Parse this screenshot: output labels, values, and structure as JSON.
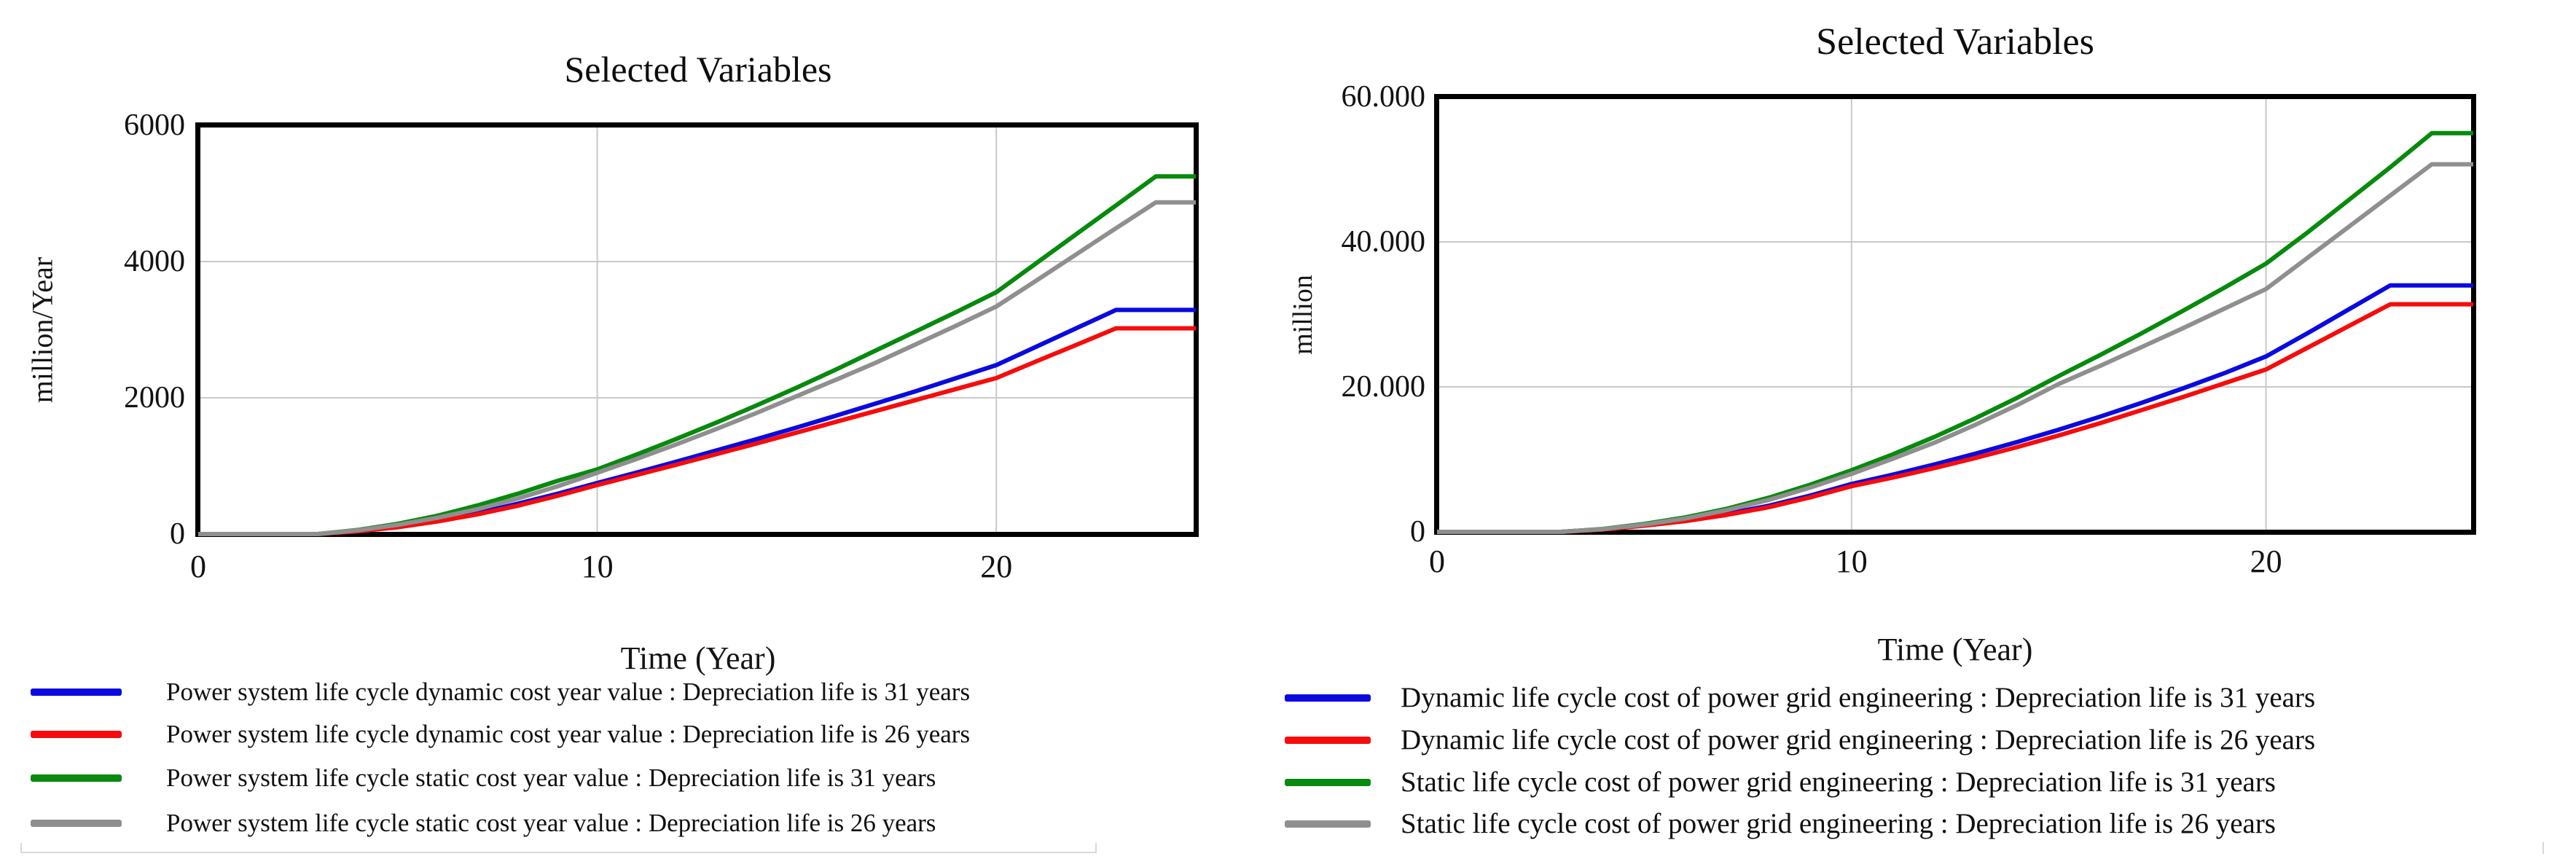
{
  "figure": {
    "background": "#ffffff",
    "frame_color": "#000000",
    "gridline_color": "#c9c9c9"
  },
  "chart_data": [
    {
      "type": "line",
      "title": "Selected Variables",
      "xlabel": "Time (Year)",
      "ylabel": "million/Year",
      "xlim": [
        0,
        25
      ],
      "ylim": [
        0,
        6000
      ],
      "grid": true,
      "legend_position": "bottom-left",
      "x_ticks": [
        {
          "value": 0,
          "label": "0"
        },
        {
          "value": 10,
          "label": "10"
        },
        {
          "value": 20,
          "label": "20"
        }
      ],
      "y_ticks": [
        {
          "value": 0,
          "label": "0"
        },
        {
          "value": 2000,
          "label": "2000"
        },
        {
          "value": 4000,
          "label": "4000"
        },
        {
          "value": 6000,
          "label": "6000"
        }
      ],
      "x": [
        0,
        1,
        2,
        3,
        4,
        5,
        6,
        7,
        8,
        9,
        10,
        11,
        12,
        13,
        14,
        15,
        16,
        17,
        18,
        19,
        20,
        21,
        22,
        23,
        24,
        25
      ],
      "series": [
        {
          "name": "Power system life cycle dynamic cost year value : Depreciation life is 31 years",
          "color": "#0a0ae0",
          "values": [
            0,
            0,
            0,
            0,
            45,
            110,
            200,
            310,
            445,
            590,
            750,
            905,
            1065,
            1230,
            1395,
            1565,
            1740,
            1920,
            2100,
            2290,
            2480,
            2750,
            3020,
            3290,
            3290,
            3290
          ]
        },
        {
          "name": "Power system life cycle dynamic cost year value : Depreciation life is 26 years",
          "color": "#f60c0c",
          "values": [
            0,
            0,
            0,
            0,
            40,
            100,
            185,
            290,
            415,
            560,
            720,
            870,
            1020,
            1175,
            1330,
            1490,
            1650,
            1810,
            1970,
            2130,
            2290,
            2535,
            2775,
            3020,
            3020,
            3020
          ]
        },
        {
          "name": "Power system life cycle static cost year value : Depreciation life is 31 years",
          "color": "#078a0d",
          "values": [
            0,
            0,
            0,
            0,
            60,
            150,
            270,
            420,
            590,
            780,
            950,
            1170,
            1400,
            1640,
            1890,
            2150,
            2420,
            2700,
            2980,
            3260,
            3550,
            3975,
            4400,
            4825,
            5250,
            5250
          ]
        },
        {
          "name": "Power system life cycle static cost year value : Depreciation life is 26 years",
          "color": "#8f8f8f",
          "values": [
            0,
            0,
            0,
            0,
            55,
            135,
            240,
            365,
            520,
            700,
            900,
            1105,
            1320,
            1545,
            1780,
            2025,
            2270,
            2520,
            2790,
            3060,
            3340,
            3720,
            4105,
            4490,
            4870,
            4870
          ]
        }
      ]
    },
    {
      "type": "line",
      "title": "Selected Variables",
      "xlabel": "Time (Year)",
      "ylabel": "million",
      "xlim": [
        0,
        25
      ],
      "ylim": [
        0,
        60000
      ],
      "grid": true,
      "legend_position": "bottom-left",
      "x_ticks": [
        {
          "value": 0,
          "label": "0"
        },
        {
          "value": 10,
          "label": "10"
        },
        {
          "value": 20,
          "label": "20"
        }
      ],
      "y_ticks": [
        {
          "value": 0,
          "label": "0"
        },
        {
          "value": 20000,
          "label": "20.000"
        },
        {
          "value": 40000,
          "label": "40.000"
        },
        {
          "value": 60000,
          "label": "60.000"
        }
      ],
      "x": [
        0,
        1,
        2,
        3,
        4,
        5,
        6,
        7,
        8,
        9,
        10,
        11,
        12,
        13,
        14,
        15,
        16,
        17,
        18,
        19,
        20,
        21,
        22,
        23,
        24,
        25
      ],
      "series": [
        {
          "name": "Dynamic life cycle cost of power grid engineering : Depreciation life is 31 years",
          "color": "#0a0ae0",
          "values": [
            0,
            0,
            0,
            0,
            350,
            900,
            1600,
            2500,
            3600,
            5000,
            6600,
            7900,
            9300,
            10800,
            12400,
            14100,
            15900,
            17800,
            19800,
            21900,
            24200,
            27400,
            30700,
            34000,
            34000,
            34000
          ]
        },
        {
          "name": "Dynamic life cycle cost of power grid engineering : Depreciation life is 26 years",
          "color": "#f60c0c",
          "values": [
            0,
            0,
            0,
            0,
            320,
            850,
            1500,
            2350,
            3400,
            4750,
            6300,
            7500,
            8800,
            10200,
            11700,
            13300,
            15000,
            16800,
            18600,
            20500,
            22400,
            25400,
            28400,
            31400,
            31400,
            31400
          ]
        },
        {
          "name": "Static life cycle cost of power grid engineering : Depreciation life is 31 years",
          "color": "#078a0d",
          "values": [
            0,
            0,
            0,
            0,
            400,
            1100,
            2000,
            3200,
            4700,
            6500,
            8500,
            10700,
            13100,
            15700,
            18500,
            21500,
            24400,
            27400,
            30500,
            33700,
            37000,
            41300,
            45800,
            50300,
            55000,
            55000
          ]
        },
        {
          "name": "Static life cycle cost of power grid engineering : Depreciation life is 26 years",
          "color": "#8f8f8f",
          "values": [
            0,
            0,
            0,
            0,
            380,
            1000,
            1850,
            3000,
            4400,
            6100,
            8000,
            10100,
            12300,
            14800,
            17500,
            20400,
            22900,
            25500,
            28100,
            30800,
            33500,
            37800,
            42100,
            46400,
            50700,
            50700
          ]
        }
      ]
    }
  ]
}
